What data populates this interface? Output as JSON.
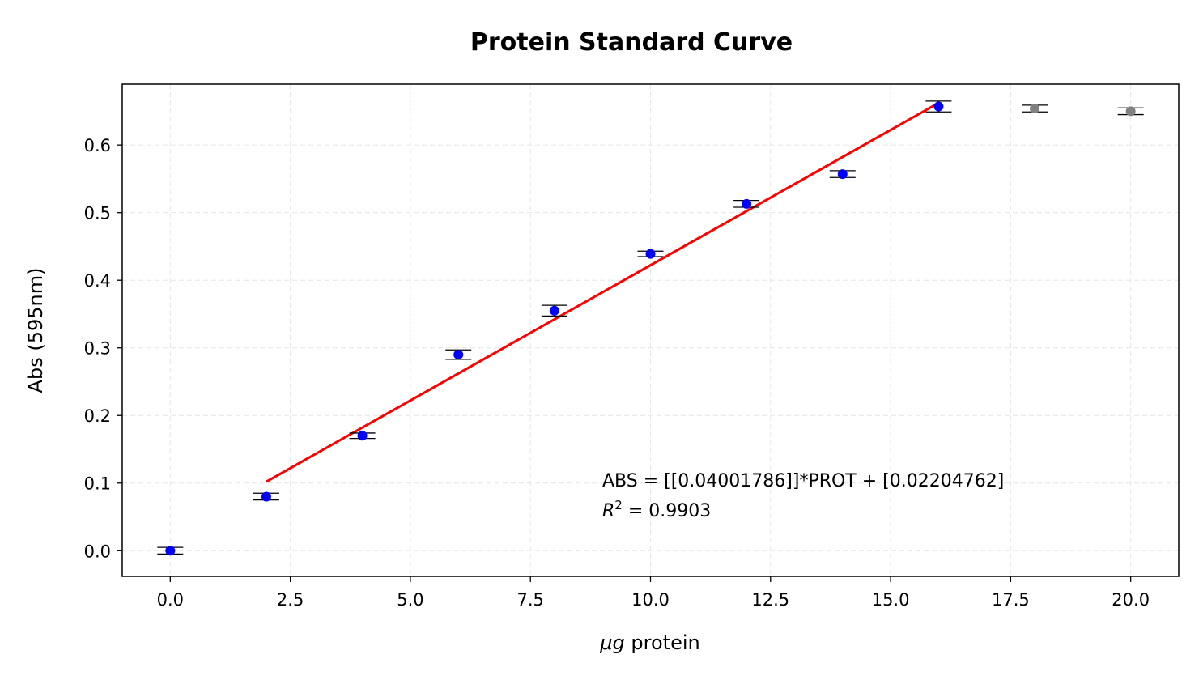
{
  "chart_data": {
    "type": "scatter",
    "title": "Protein Standard Curve",
    "xlabel": "protein",
    "xlabel_symbol": "μg",
    "ylabel": "Abs (595nm)",
    "xlim": [
      -1.0,
      21.0
    ],
    "ylim": [
      -0.038,
      0.69
    ],
    "xticks": [
      0.0,
      2.5,
      5.0,
      7.5,
      10.0,
      12.5,
      15.0,
      17.5,
      20.0
    ],
    "xtick_labels": [
      "0.0",
      "2.5",
      "5.0",
      "7.5",
      "10.0",
      "12.5",
      "15.0",
      "17.5",
      "20.0"
    ],
    "yticks": [
      0.0,
      0.1,
      0.2,
      0.3,
      0.4,
      0.5,
      0.6
    ],
    "ytick_labels": [
      "0.0",
      "0.1",
      "0.2",
      "0.3",
      "0.4",
      "0.5",
      "0.6"
    ],
    "grid": true,
    "series": [
      {
        "points": [
          {
            "x": 0,
            "y": 0.0,
            "err": 0.005
          },
          {
            "x": 2,
            "y": 0.08,
            "err": 0.005
          },
          {
            "x": 4,
            "y": 0.17,
            "err": 0.004
          },
          {
            "x": 6,
            "y": 0.29,
            "err": 0.007
          },
          {
            "x": 8,
            "y": 0.355,
            "err": 0.008
          },
          {
            "x": 10,
            "y": 0.439,
            "err": 0.004
          },
          {
            "x": 12,
            "y": 0.513,
            "err": 0.005
          },
          {
            "x": 14,
            "y": 0.557,
            "err": 0.005
          },
          {
            "x": 16,
            "y": 0.657,
            "err": 0.008
          }
        ],
        "color": "#0000ff"
      },
      {
        "points": [
          {
            "x": 18,
            "y": 0.654,
            "err": 0.005
          },
          {
            "x": 20,
            "y": 0.65,
            "err": 0.005
          }
        ],
        "color": "#808080"
      }
    ],
    "fit": {
      "slope": 0.04001786,
      "intercept": 0.02204762,
      "x_range": [
        2,
        16
      ],
      "color": "#ff0000"
    },
    "annotation": {
      "equation": "ABS = [[0.04001786]]*PROT + [0.02204762]",
      "r2_symbol": "R",
      "r2_exp": "2",
      "r2_text": " =  0.9903"
    }
  }
}
